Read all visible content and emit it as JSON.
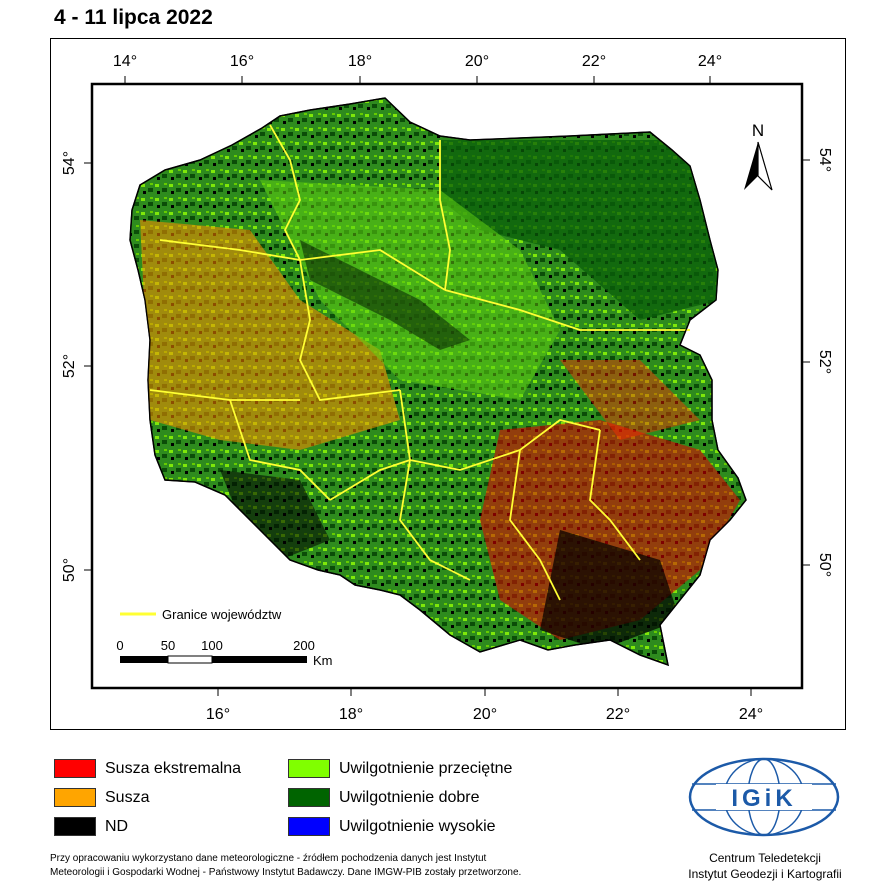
{
  "title": "4 - 11 lipca 2022",
  "map": {
    "top_longitudes": [
      "14°",
      "16°",
      "18°",
      "20°",
      "22°",
      "24°"
    ],
    "bottom_longitudes": [
      "16°",
      "18°",
      "20°",
      "22°",
      "24°"
    ],
    "left_latitudes": [
      "54°",
      "52°",
      "50°"
    ],
    "right_latitudes": [
      "54°",
      "52°",
      "50°"
    ],
    "north_label": "N",
    "boundary_legend": "Granice województw",
    "scalebar": {
      "ticks": [
        "0",
        "50",
        "100",
        "200"
      ],
      "unit": "Km"
    }
  },
  "legend": [
    {
      "label": "Susza ekstremalna",
      "color": "#ff0000"
    },
    {
      "label": "Susza",
      "color": "#ffa500"
    },
    {
      "label": "ND",
      "color": "#000000"
    },
    {
      "label": "Uwilgotnienie przeciętne",
      "color": "#80ff00"
    },
    {
      "label": "Uwilgotnienie dobre",
      "color": "#006400"
    },
    {
      "label": "Uwilgotnienie wysokie",
      "color": "#0000ff"
    }
  ],
  "note": {
    "line1": "Przy opracowaniu wykorzystano dane meteorologiczne - źródłem pochodzenia danych jest Instytut",
    "line2": "Meteorologii i Gospodarki Wodnej - Państwowy Instytut Badawczy. Dane IMGW-PIB zostały przetworzone."
  },
  "logo": {
    "text": "IGiK",
    "caption_line1": "Centrum Teledetekcji",
    "caption_line2": "Instytut Geodezji i Kartografii"
  },
  "colors": {
    "boundary": "#ffff33",
    "logo_blue": "#1c5aa8"
  }
}
